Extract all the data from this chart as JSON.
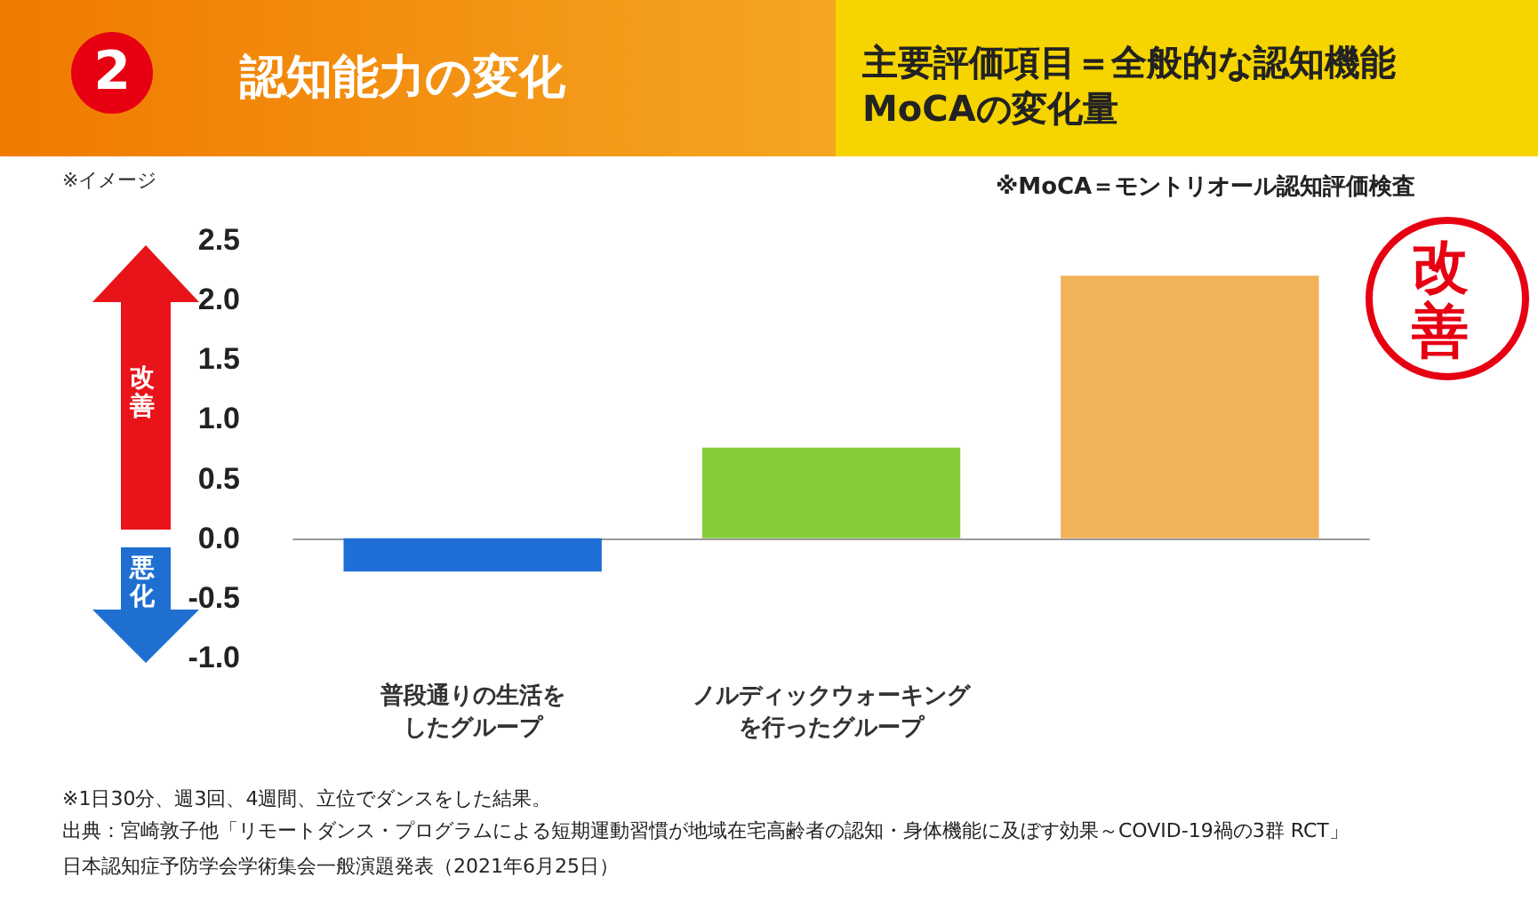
{
  "chart_data": {
    "type": "bar",
    "title": "認知能力の変化",
    "subtitle": "主要評価項目＝全般的な認知機能\nMoCAの変化量",
    "categories": [
      "普段通りの生活をしたグループ",
      "ノルディックウォーキングを行ったグループ",
      null
    ],
    "values": [
      -0.28,
      0.76,
      2.2
    ],
    "colors": [
      "#1f6fd6",
      "#86cc3a",
      "#f2b25a"
    ],
    "ylim": [
      -1,
      2.5
    ],
    "yticks": [
      {
        "value": -1,
        "label": "-1.0"
      },
      {
        "value": -0.5,
        "label": "-0.5"
      },
      {
        "value": 0,
        "label": "0.0"
      },
      {
        "value": 0.5,
        "label": "0.5"
      },
      {
        "value": 1,
        "label": "1.0"
      },
      {
        "value": 1.5,
        "label": "1.5"
      },
      {
        "value": 2,
        "label": "2.0"
      },
      {
        "value": 2.5,
        "label": "2.5"
      }
    ],
    "annotations": [
      "2",
      "※イメージ",
      "※MoCA＝モントリオール認知評価検査",
      "改善",
      "悪化",
      "改善",
      "※1日30分、週3回、4週間、立位でダンスをした結果。",
      "出典：宮崎敦子他「リモートダンス・プログラムによる短期運動習慣が地域在宅高齢者の認知・身体機能に及ぼす効果～COVID-19禍の3群 RCT」",
      "日本認知症予防学会学術集会一般演題発表（2021年6月25日）"
    ]
  }
}
